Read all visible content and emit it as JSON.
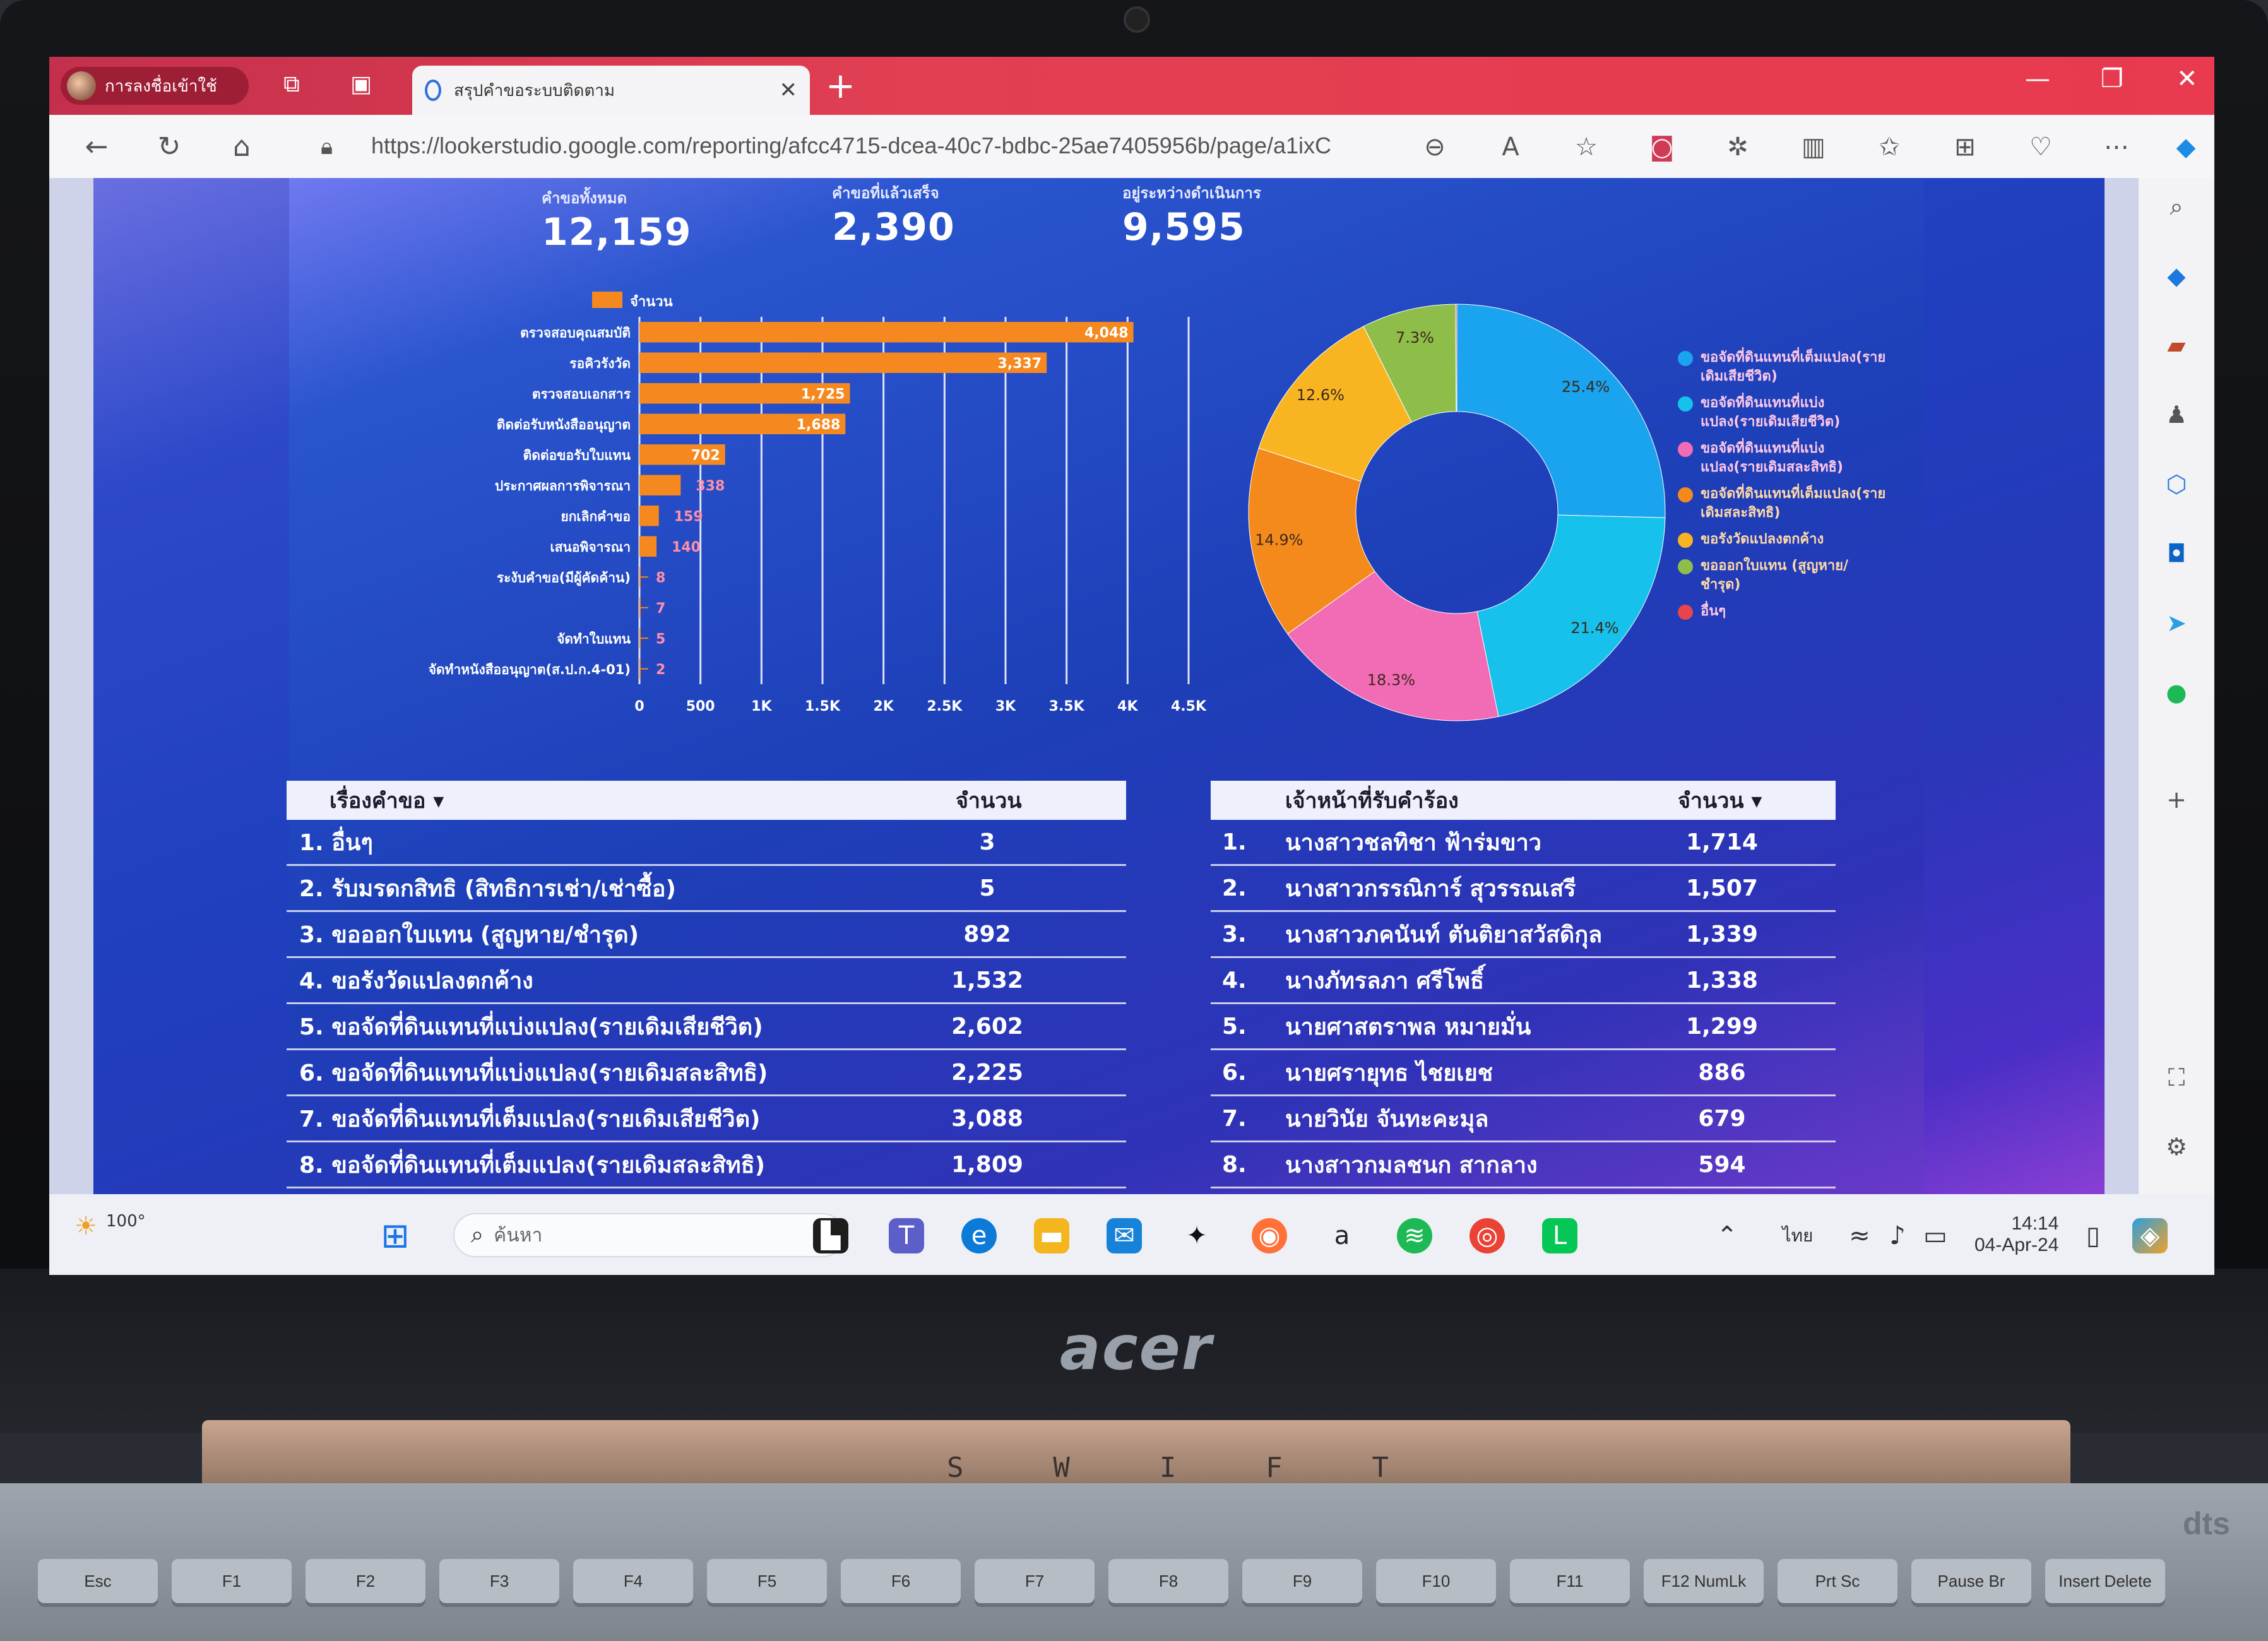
{
  "browser": {
    "profile_label": "การลงชื่อเข้าใช้",
    "tab_title": "สรุปคำขอระบบติดตาม",
    "url": "https://lookerstudio.google.com/reporting/afcc4715-dcea-40c7-bdbc-25ae7405956b/page/a1ixC"
  },
  "kpis": [
    {
      "label": "คำขอทั้งหมด",
      "value": "12,159"
    },
    {
      "label": "คำขอที่แล้วเสร็จ",
      "value": "2,390"
    },
    {
      "label": "อยู่ระหว่างดำเนินการ",
      "value": "9,595"
    }
  ],
  "bar_legend": "จำนวน",
  "chart_data": [
    {
      "type": "bar",
      "orientation": "horizontal",
      "categories": [
        "ตรวจสอบคุณสมบัติ",
        "รอคิวรังวัด",
        "ตรวจสอบเอกสาร",
        "ติดต่อรับหนังสืออนุญาต",
        "ติดต่อขอรับใบแทน",
        "ประกาศผลการพิจารณา",
        "ยกเลิกคำขอ",
        "เสนอพิจารณา",
        "ระงับคำขอ(มีผู้คัดค้าน)",
        "",
        "จัดทำใบแทน",
        "จัดทำหนังสืออนุญาต(ส.ป.ก.4-01)"
      ],
      "series": [
        {
          "name": "จำนวน",
          "values": [
            4048,
            3337,
            1725,
            1688,
            702,
            338,
            159,
            140,
            8,
            7,
            5,
            2
          ]
        }
      ],
      "value_labels": [
        "4,048",
        "3,337",
        "1,725",
        "1,688",
        "702",
        "338",
        "159",
        "140",
        "8",
        "7",
        "5",
        "2"
      ],
      "x_ticks": [
        "0",
        "500",
        "1K",
        "1.5K",
        "2K",
        "2.5K",
        "3K",
        "3.5K",
        "4K",
        "4.5K"
      ],
      "xlim": [
        0,
        4500
      ],
      "color": "#f5891f"
    },
    {
      "type": "pie",
      "donut": true,
      "slices": [
        {
          "label": "ขอจัดที่ดินแทนที่เต็มแปลง(รายเดิมเสียชีวิต)",
          "value": 25.4,
          "text": "25.4%",
          "color": "#1aa3ee"
        },
        {
          "label": "ขอจัดที่ดินแทนที่แบ่งแปลง(รายเดิมเสียชีวิต)",
          "value": 21.4,
          "text": "21.4%",
          "color": "#16c1ec"
        },
        {
          "label": "ขอจัดที่ดินแทนที่แบ่งแปลง(รายเดิมสละสิทธิ)",
          "value": 18.3,
          "text": "18.3%",
          "color": "#f26bb5"
        },
        {
          "label": "ขอจัดที่ดินแทนที่เต็มแปลง(รายเดิมสละสิทธิ)",
          "value": 14.9,
          "text": "14.9%",
          "color": "#f58a1c"
        },
        {
          "label": "ขอรังวัดแปลงตกค้าง",
          "value": 12.6,
          "text": "12.6%",
          "color": "#f9b422"
        },
        {
          "label": "ขอออกใบแทน (สูญหาย/ชำรุด)",
          "value": 7.3,
          "text": "7.3%",
          "color": "#8fbd4a"
        },
        {
          "label": "อื่นๆ",
          "value": 0.1,
          "text": "",
          "color": "#e8444c"
        }
      ]
    }
  ],
  "pie_legend": [
    {
      "text": "ขอจัดที่ดินแทนที่เต็มแปลง(รายเดิมเสียชีวิต)",
      "color": "#1aa3ee"
    },
    {
      "text": "ขอจัดที่ดินแทนที่แบ่งแปลง(รายเดิมเสียชีวิต)",
      "color": "#16c1ec"
    },
    {
      "text": "ขอจัดที่ดินแทนที่แบ่งแปลง(รายเดิมสละสิทธิ)",
      "color": "#f26bb5"
    },
    {
      "text": "ขอจัดที่ดินแทนที่เต็มแปลง(รายเดิมสละสิทธิ)",
      "color": "#f58a1c"
    },
    {
      "text": "ขอรังวัดแปลงตกค้าง",
      "color": "#f9b422"
    },
    {
      "text": "ขอออกใบแทน (สูญหาย/ชำรุด)",
      "color": "#8fbd4a"
    },
    {
      "text": "อื่นๆ",
      "color": "#e8444c"
    }
  ],
  "table_left": {
    "headers": [
      "เรื่องคำขอ ▾",
      "จำนวน"
    ],
    "rows": [
      {
        "name": "1. อื่นๆ",
        "value": "3"
      },
      {
        "name": "2. รับมรดกสิทธิ (สิทธิการเช่า/เช่าซื้อ)",
        "value": "5"
      },
      {
        "name": "3. ขอออกใบแทน (สูญหาย/ชำรุด)",
        "value": "892"
      },
      {
        "name": "4. ขอรังวัดแปลงตกค้าง",
        "value": "1,532"
      },
      {
        "name": "5. ขอจัดที่ดินแทนที่แบ่งแปลง(รายเดิมเสียชีวิต)",
        "value": "2,602"
      },
      {
        "name": "6. ขอจัดที่ดินแทนที่แบ่งแปลง(รายเดิมสละสิทธิ)",
        "value": "2,225"
      },
      {
        "name": "7. ขอจัดที่ดินแทนที่เต็มแปลง(รายเดิมเสียชีวิต)",
        "value": "3,088"
      },
      {
        "name": "8. ขอจัดที่ดินแทนที่เต็มแปลง(รายเดิมสละสิทธิ)",
        "value": "1,809"
      }
    ]
  },
  "table_right": {
    "headers": [
      "เจ้าหน้าที่รับคำร้อง",
      "จำนวน ▾"
    ],
    "rows": [
      {
        "idx": "1.",
        "name": "นางสาวชลทิชา ฟ้าร่มขาว",
        "value": "1,714"
      },
      {
        "idx": "2.",
        "name": "นางสาวกรรณิการ์ สุวรรณเสรี",
        "value": "1,507"
      },
      {
        "idx": "3.",
        "name": "นางสาวภคนันท์ ตันติยาสวัสดิกุล",
        "value": "1,339"
      },
      {
        "idx": "4.",
        "name": "นางภัทรลภา ศรีโพธิ์",
        "value": "1,338"
      },
      {
        "idx": "5.",
        "name": "นายศาสตราพล หมายมั่น",
        "value": "1,299"
      },
      {
        "idx": "6.",
        "name": "นายศรายุทธ ไชยเยช",
        "value": "886"
      },
      {
        "idx": "7.",
        "name": "นายวินัย จันทะคะมุล",
        "value": "679"
      },
      {
        "idx": "8.",
        "name": "นางสาวกมลชนก สากลาง",
        "value": "594"
      }
    ]
  },
  "taskbar": {
    "weather": "100°",
    "search_placeholder": "ค้นหา",
    "language": "ไทย",
    "time": "14:14",
    "date": "04-Apr-24"
  },
  "device": {
    "brand": "acer",
    "model_letters": [
      "S",
      "W",
      "I",
      "F",
      "T"
    ],
    "keys": [
      "Esc",
      "F1",
      "F2",
      "F3",
      "F4",
      "F5",
      "F6",
      "F7",
      "F8",
      "F9",
      "F10",
      "F11",
      "F12 NumLk",
      "Prt Sc",
      "Pause Br",
      "Insert Delete"
    ]
  }
}
